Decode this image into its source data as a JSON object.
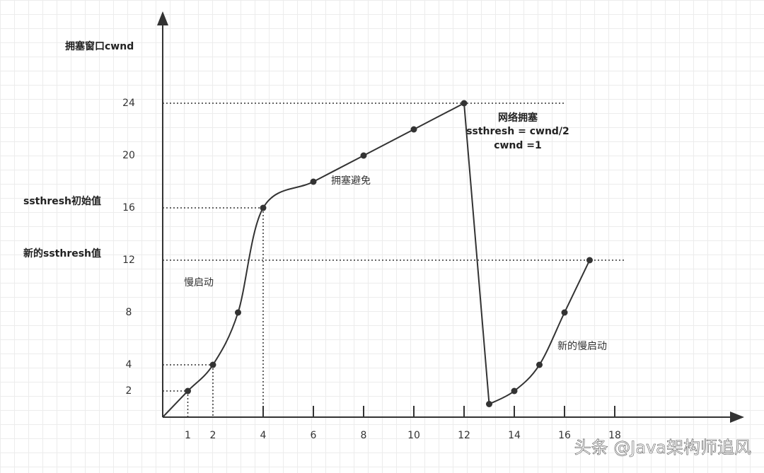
{
  "chart_data": {
    "type": "line",
    "y_label": "拥塞窗口cwnd",
    "x": [
      0,
      1,
      2,
      3,
      4,
      6,
      8,
      10,
      12,
      13,
      14,
      15,
      16,
      17
    ],
    "values": [
      0,
      2,
      4,
      8,
      16,
      18,
      20,
      22,
      24,
      1,
      2,
      4,
      8,
      12
    ],
    "color": "#333333",
    "xlim": [
      0,
      23
    ],
    "ylim": [
      0,
      30
    ],
    "xticks": [
      1,
      2,
      4,
      6,
      8,
      10,
      12,
      14,
      16,
      18
    ],
    "yticks": [
      2,
      4,
      8,
      12,
      16,
      20,
      24
    ],
    "threshold_labels": [
      {
        "value": 16,
        "label": "ssthresh初始值"
      },
      {
        "value": 12,
        "label": "新的ssthresh值"
      }
    ],
    "annotations": [
      "拥塞避免",
      "慢启动",
      "新的慢启动",
      "网络拥塞",
      "ssthresh = cwnd/2",
      "cwnd =1"
    ],
    "watermark": "头条 @Java架构师追风"
  }
}
